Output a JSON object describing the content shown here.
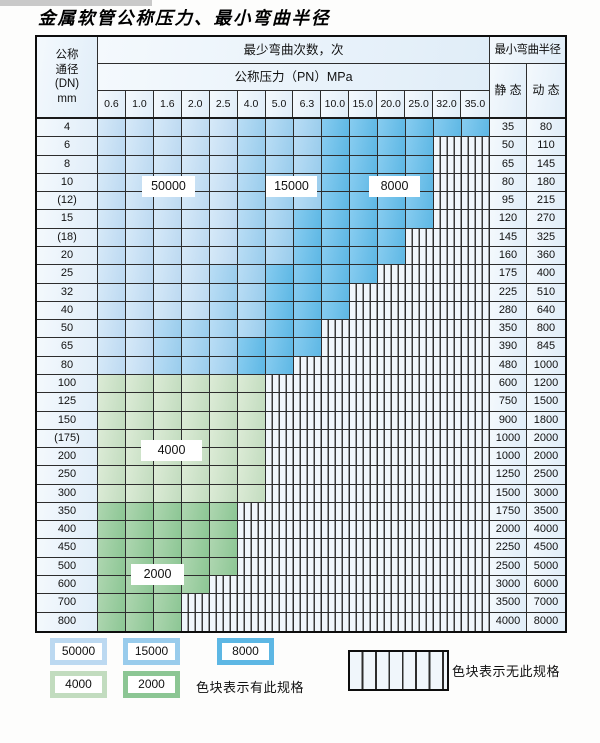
{
  "title": "金属软管公称压力、最小弯曲半径",
  "table": {
    "dn_header_lines": [
      "公称",
      "通径",
      "(DN)",
      "mm"
    ],
    "bend_cycles_header": "最少弯曲次数，次",
    "pressure_header": "公称压力（PN）MPa",
    "radius_header": "最小弯曲半径",
    "static_header": "静 态",
    "dynamic_header": "动 态",
    "pressure_columns": [
      "0.6",
      "1.0",
      "1.6",
      "2.0",
      "2.5",
      "4.0",
      "5.0",
      "6.3",
      "10.0",
      "15.0",
      "20.0",
      "25.0",
      "32.0",
      "35.0"
    ],
    "rows": [
      {
        "dn": "4",
        "static": "35",
        "dynamic": "80",
        "band": "blue",
        "avail": 14,
        "b15": 5,
        "b8": 8
      },
      {
        "dn": "6",
        "static": "50",
        "dynamic": "110",
        "band": "blue",
        "avail": 12,
        "b15": 5,
        "b8": 8
      },
      {
        "dn": "8",
        "static": "65",
        "dynamic": "145",
        "band": "blue",
        "avail": 12,
        "b15": 5,
        "b8": 8
      },
      {
        "dn": "10",
        "static": "80",
        "dynamic": "180",
        "band": "blue",
        "avail": 12,
        "b15": 5,
        "b8": 8
      },
      {
        "dn": "(12)",
        "static": "95",
        "dynamic": "215",
        "band": "blue",
        "avail": 12,
        "b15": 5,
        "b8": 8
      },
      {
        "dn": "15",
        "static": "120",
        "dynamic": "270",
        "band": "blue",
        "avail": 12,
        "b15": 5,
        "b8": 7
      },
      {
        "dn": "(18)",
        "static": "145",
        "dynamic": "325",
        "band": "blue",
        "avail": 11,
        "b15": 5,
        "b8": 7
      },
      {
        "dn": "20",
        "static": "160",
        "dynamic": "360",
        "band": "blue",
        "avail": 11,
        "b15": 5,
        "b8": 7
      },
      {
        "dn": "25",
        "static": "175",
        "dynamic": "400",
        "band": "blue",
        "avail": 10,
        "b15": 4,
        "b8": 6
      },
      {
        "dn": "32",
        "static": "225",
        "dynamic": "510",
        "band": "blue",
        "avail": 9,
        "b15": 4,
        "b8": 6
      },
      {
        "dn": "40",
        "static": "280",
        "dynamic": "640",
        "band": "blue",
        "avail": 9,
        "b15": 4,
        "b8": 6
      },
      {
        "dn": "50",
        "static": "350",
        "dynamic": "800",
        "band": "blue",
        "avail": 8,
        "b15": 2,
        "b8": 6
      },
      {
        "dn": "65",
        "static": "390",
        "dynamic": "845",
        "band": "blue",
        "avail": 8,
        "b15": 2,
        "b8": 5
      },
      {
        "dn": "80",
        "static": "480",
        "dynamic": "1000",
        "band": "blue",
        "avail": 7,
        "b15": 2,
        "b8": 5
      },
      {
        "dn": "100",
        "static": "600",
        "dynamic": "1200",
        "band": "green4000",
        "avail": 6
      },
      {
        "dn": "125",
        "static": "750",
        "dynamic": "1500",
        "band": "green4000",
        "avail": 6
      },
      {
        "dn": "150",
        "static": "900",
        "dynamic": "1800",
        "band": "green4000",
        "avail": 6
      },
      {
        "dn": "(175)",
        "static": "1000",
        "dynamic": "2000",
        "band": "green4000",
        "avail": 6
      },
      {
        "dn": "200",
        "static": "1000",
        "dynamic": "2000",
        "band": "green4000",
        "avail": 6
      },
      {
        "dn": "250",
        "static": "1250",
        "dynamic": "2500",
        "band": "green4000",
        "avail": 6
      },
      {
        "dn": "300",
        "static": "1500",
        "dynamic": "3000",
        "band": "green4000",
        "avail": 6
      },
      {
        "dn": "350",
        "static": "1750",
        "dynamic": "3500",
        "band": "green2000",
        "avail": 5
      },
      {
        "dn": "400",
        "static": "2000",
        "dynamic": "4000",
        "band": "green2000",
        "avail": 5
      },
      {
        "dn": "450",
        "static": "2250",
        "dynamic": "4500",
        "band": "green2000",
        "avail": 5
      },
      {
        "dn": "500",
        "static": "2500",
        "dynamic": "5000",
        "band": "green2000",
        "avail": 5
      },
      {
        "dn": "600",
        "static": "3000",
        "dynamic": "6000",
        "band": "green2000",
        "avail": 4
      },
      {
        "dn": "700",
        "static": "3500",
        "dynamic": "7000",
        "band": "green2000",
        "avail": 3
      },
      {
        "dn": "800",
        "static": "4000",
        "dynamic": "8000",
        "band": "green2000",
        "avail": 3
      }
    ]
  },
  "overlay_labels": {
    "cycles_50000": "50000",
    "cycles_15000": "15000",
    "cycles_8000": "8000",
    "cycles_4000": "4000",
    "cycles_2000": "2000"
  },
  "legend": {
    "items": [
      {
        "label": "50000",
        "color": "#bcd9f1"
      },
      {
        "label": "15000",
        "color": "#99ccec"
      },
      {
        "label": "8000",
        "color": "#5db7e4"
      },
      {
        "label": "4000",
        "color": "#c2dcbf"
      },
      {
        "label": "2000",
        "color": "#8cc694"
      }
    ],
    "has_spec_text": "色块表示有此规格",
    "no_spec_text": "色块表示无此规格"
  },
  "colors": {
    "c50a": "#d6e9f8",
    "c50b": "#bcd9f1",
    "c15a": "#b9ddf5",
    "c15b": "#99ccec",
    "c8a": "#87ccf0",
    "c8b": "#5db7e4",
    "g4a": "#dcebd6",
    "g4b": "#c2dcbf",
    "g2a": "#aed6b0",
    "g2b": "#8cc694",
    "na_fill": "#f0f6fb",
    "cell_bg_a": "#f4f9fd",
    "cell_bg_b": "#e0edf8",
    "grid_line": "#2d2d2d"
  }
}
